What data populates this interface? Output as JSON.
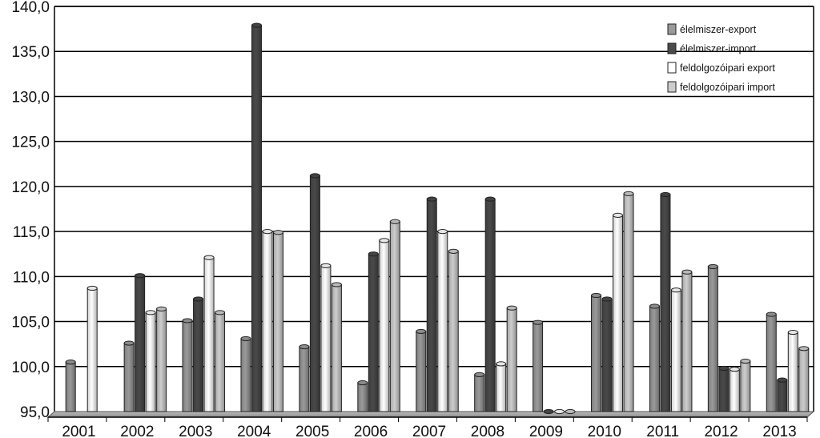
{
  "chart_data": {
    "type": "bar",
    "categories": [
      "2001",
      "2002",
      "2003",
      "2004",
      "2005",
      "2006",
      "2007",
      "2008",
      "2009",
      "2010",
      "2011",
      "2012",
      "2013"
    ],
    "series": [
      {
        "name": "élelmiszer-export",
        "color": "#9a9a9a",
        "values": [
          100.5,
          102.6,
          105.1,
          103.1,
          102.2,
          98.2,
          103.9,
          99.1,
          104.9,
          107.9,
          106.7,
          111.1,
          105.8
        ]
      },
      {
        "name": "élelmiszer-import",
        "color": "#4a4a4a",
        "values": [
          null,
          110.1,
          107.5,
          137.9,
          121.2,
          112.5,
          118.6,
          118.6,
          95.0,
          107.5,
          119.1,
          99.8,
          98.5
        ]
      },
      {
        "name": "feldolgozóipari export",
        "color": "#ffffff",
        "values": [
          108.7,
          106.0,
          112.1,
          115.0,
          111.2,
          114.0,
          115.0,
          100.3,
          95.0,
          116.8,
          108.5,
          99.7,
          103.8
        ]
      },
      {
        "name": "feldolgozóipari import",
        "color": "#cdcdcd",
        "values": [
          null,
          106.4,
          106.0,
          114.9,
          109.1,
          116.1,
          112.8,
          106.5,
          95.0,
          119.2,
          110.5,
          100.6,
          102.0
        ]
      }
    ],
    "y_tick_labels": [
      "95,0",
      "100,0",
      "105,0",
      "110,0",
      "115,0",
      "120,0",
      "125,0",
      "130,0",
      "135,0",
      "140,0"
    ],
    "ylim": [
      95,
      140
    ],
    "grid": true,
    "legend_position": "top-right"
  }
}
